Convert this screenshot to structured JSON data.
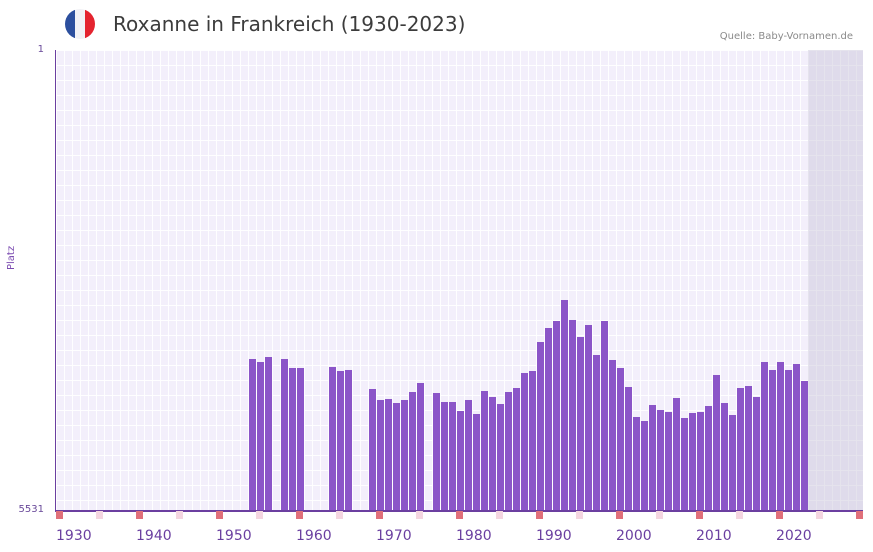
{
  "header": {
    "title": "Roxanne in Frankreich (1930-2023)",
    "source": "Quelle: Baby-Vornamen.de",
    "flag_colors": [
      "#2c4f9e",
      "#f2f2f6",
      "#e4242f"
    ]
  },
  "colors": {
    "bar": "#8b55c8",
    "axis": "#6b3fa0",
    "decade_tick": "#e0707a",
    "half_decade_tick": "#f4d6e0"
  },
  "chart_data": {
    "type": "bar",
    "title": "Roxanne in Frankreich (1930-2023)",
    "xlabel": "",
    "ylabel": "Platz",
    "y_reversed": true,
    "ylim": [
      5531,
      1
    ],
    "y_ticks": [
      "1",
      "5531"
    ],
    "x_range": [
      1930,
      2030
    ],
    "x_ticks": [
      "1930",
      "1940",
      "1950",
      "1960",
      "1970",
      "1980",
      "1990",
      "2000",
      "2010",
      "2020"
    ],
    "grid": true,
    "future_shaded_from": 2024,
    "x": [
      1954,
      1955,
      1956,
      1958,
      1959,
      1960,
      1964,
      1965,
      1966,
      1969,
      1970,
      1971,
      1972,
      1973,
      1974,
      1975,
      1977,
      1978,
      1979,
      1980,
      1981,
      1982,
      1983,
      1984,
      1985,
      1986,
      1987,
      1988,
      1989,
      1990,
      1991,
      1992,
      1993,
      1994,
      1995,
      1996,
      1997,
      1998,
      1999,
      2000,
      2001,
      2002,
      2003,
      2004,
      2005,
      2006,
      2007,
      2008,
      2009,
      2010,
      2011,
      2012,
      2013,
      2014,
      2015,
      2016,
      2017,
      2018,
      2019,
      2020,
      2021,
      2022,
      2023
    ],
    "values": [
      3716,
      3752,
      3692,
      3716,
      3824,
      3824,
      3812,
      3860,
      3848,
      4077,
      4209,
      4197,
      4245,
      4209,
      4113,
      4005,
      4125,
      4233,
      4233,
      4341,
      4209,
      4377,
      4101,
      4173,
      4257,
      4113,
      4065,
      3884,
      3860,
      3512,
      3343,
      3259,
      3007,
      3247,
      3451,
      3307,
      3667,
      3259,
      3728,
      3824,
      4053,
      4413,
      4461,
      4269,
      4329,
      4353,
      4185,
      4425,
      4365,
      4353,
      4281,
      3908,
      4245,
      4389,
      4065,
      4041,
      4173,
      3752,
      3848,
      3752,
      3848,
      3776,
      3980
    ]
  }
}
